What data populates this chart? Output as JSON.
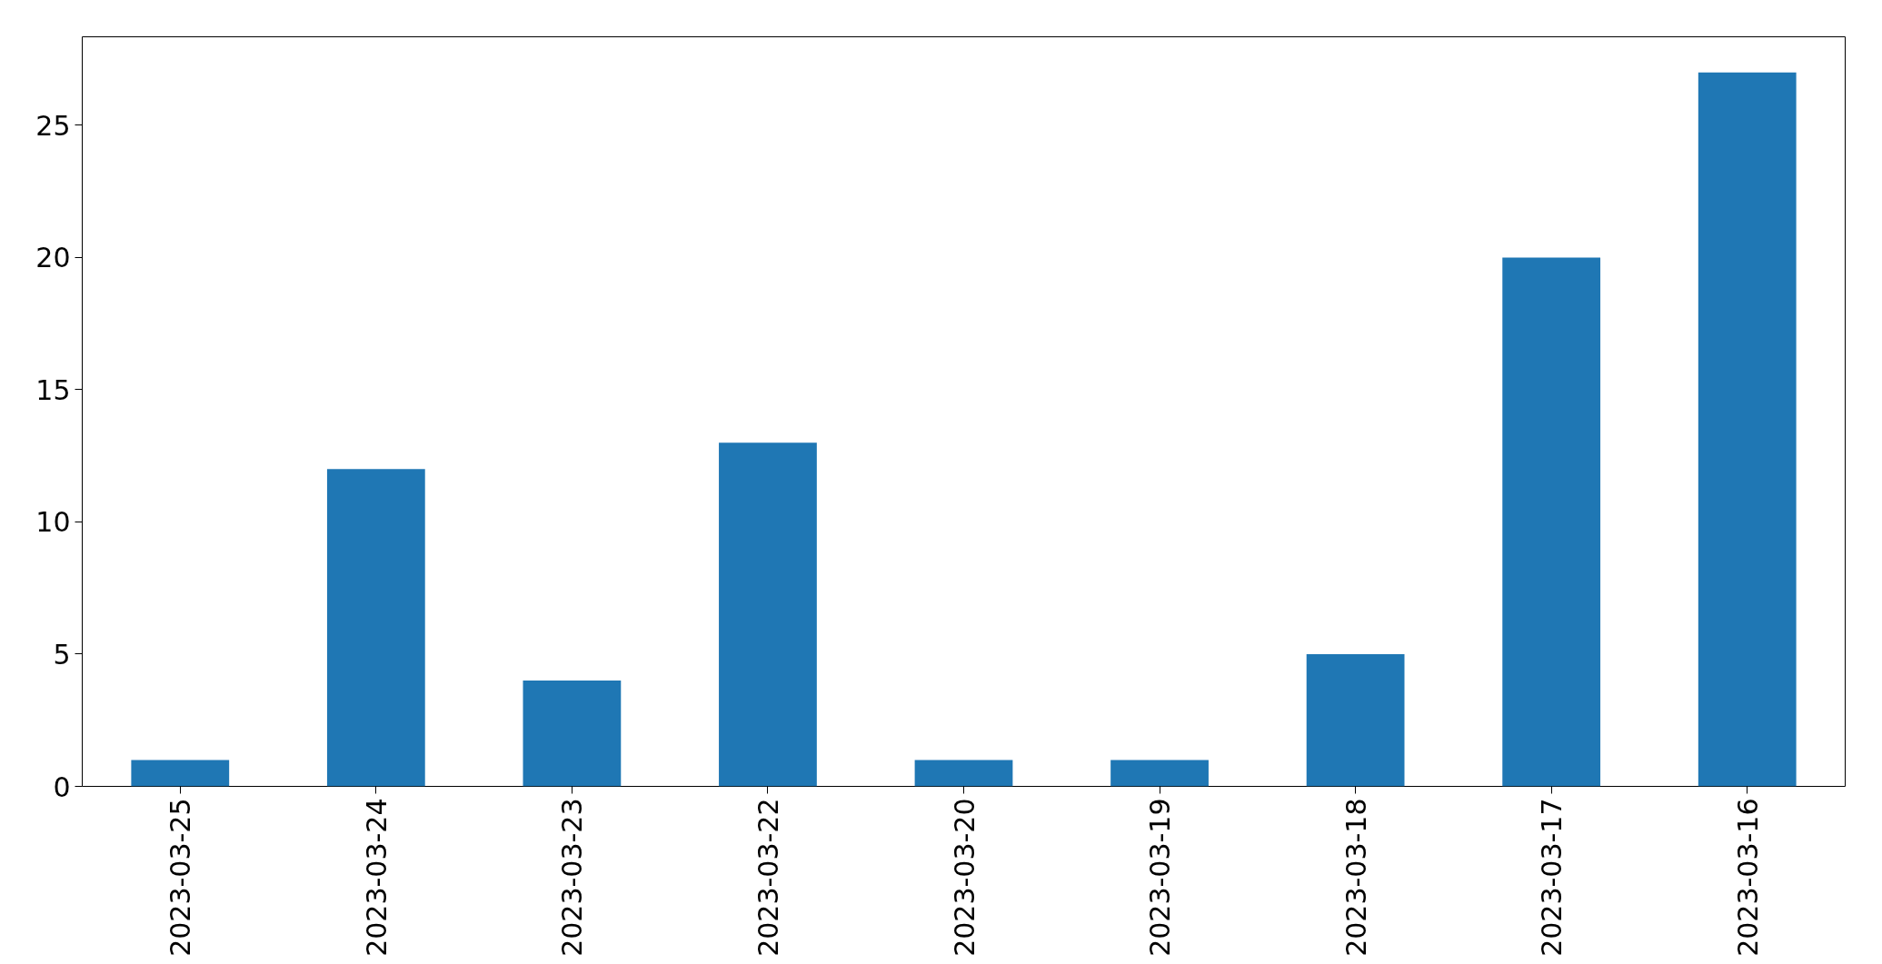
{
  "chart_data": {
    "type": "bar",
    "categories": [
      "2023-03-25",
      "2023-03-24",
      "2023-03-23",
      "2023-03-22",
      "2023-03-20",
      "2023-03-19",
      "2023-03-18",
      "2023-03-17",
      "2023-03-16"
    ],
    "values": [
      1,
      12,
      4,
      13,
      1,
      1,
      5,
      20,
      27
    ],
    "color": "#1f77b4",
    "ylim": [
      0,
      28.35
    ],
    "yticks": [
      0,
      5,
      10,
      15,
      20,
      25
    ],
    "grid": false
  }
}
